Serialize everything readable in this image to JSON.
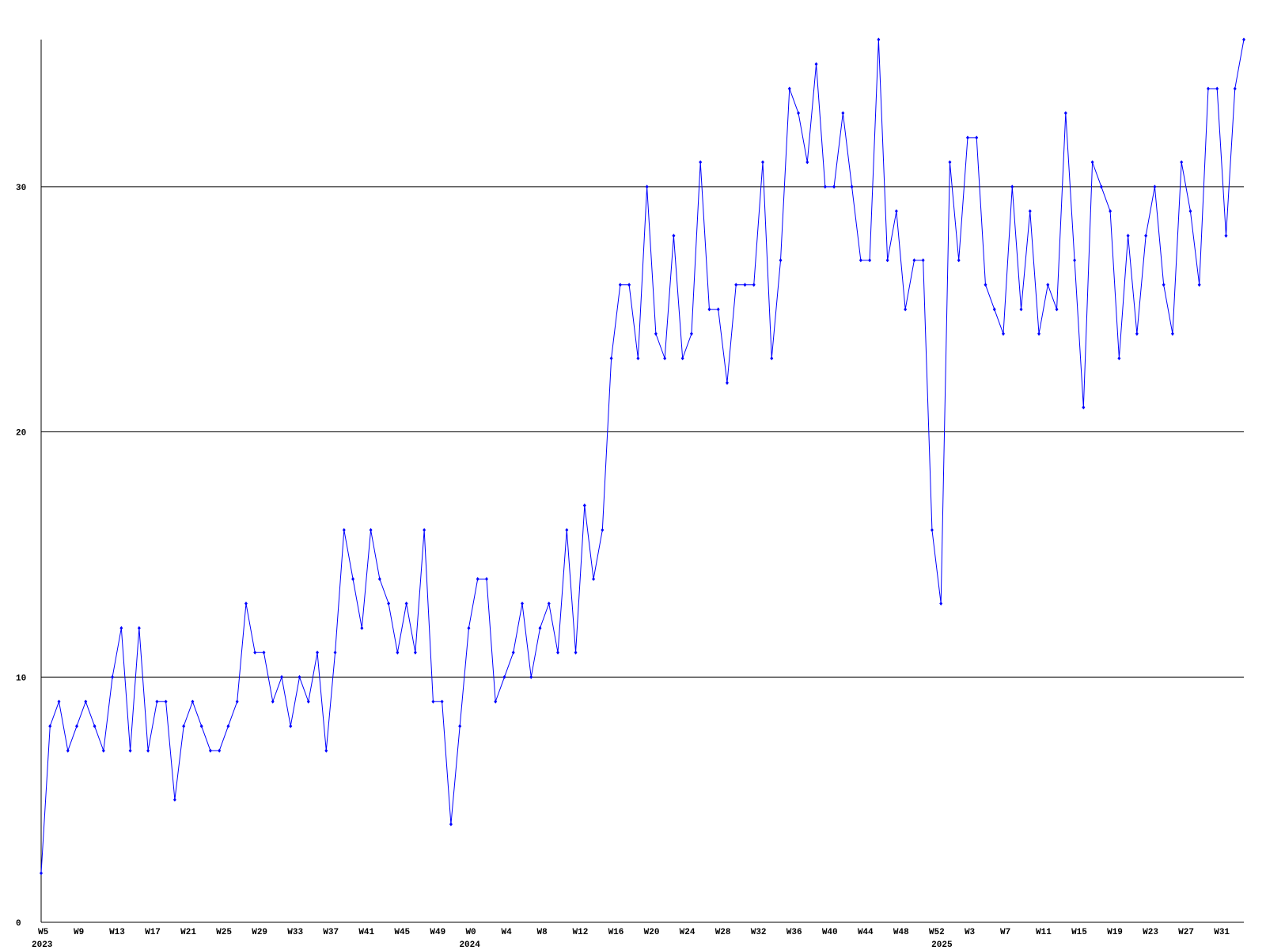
{
  "chart_data": {
    "type": "line",
    "categories": [
      "W5",
      null,
      null,
      null,
      "W9",
      null,
      null,
      null,
      "W13",
      null,
      null,
      null,
      "W17",
      null,
      null,
      null,
      "W21",
      null,
      null,
      null,
      "W25",
      null,
      null,
      null,
      "W29",
      null,
      null,
      null,
      "W33",
      null,
      null,
      null,
      "W37",
      null,
      null,
      null,
      "W41",
      null,
      null,
      null,
      "W45",
      null,
      null,
      null,
      "W49",
      null,
      null,
      null,
      "W0",
      null,
      null,
      null,
      "W4",
      null,
      null,
      null,
      "W8",
      null,
      null,
      null,
      "W12",
      null,
      null,
      null,
      "W16",
      null,
      null,
      null,
      "W20",
      null,
      null,
      null,
      "W24",
      null,
      null,
      null,
      "W28",
      null,
      null,
      null,
      "W32",
      null,
      null,
      null,
      "W36",
      null,
      null,
      null,
      "W40",
      null,
      null,
      null,
      "W44",
      null,
      null,
      null,
      "W48",
      null,
      null,
      null,
      "W52",
      null,
      null,
      null,
      "W3",
      null,
      null,
      null,
      "W7",
      null,
      null,
      null,
      "W11",
      null,
      null,
      null,
      "W15",
      null,
      null,
      null,
      "W19",
      null,
      null,
      null,
      "W23",
      null,
      null,
      null,
      "W27",
      null,
      null,
      null,
      "W31",
      null,
      null,
      null
    ],
    "x_group_labels": [
      {
        "at": 0,
        "label": "2023"
      },
      {
        "at": 48,
        "label": "2024"
      },
      {
        "at": 101,
        "label": "2025"
      }
    ],
    "series": [
      {
        "color": "#0000ff",
        "values": [
          2,
          8,
          9,
          7,
          8,
          9,
          8,
          7,
          10,
          12,
          7,
          12,
          7,
          9,
          9,
          5,
          8,
          9,
          8,
          7,
          7,
          8,
          9,
          13,
          11,
          11,
          9,
          10,
          8,
          10,
          9,
          11,
          7,
          11,
          16,
          14,
          12,
          16,
          14,
          13,
          11,
          13,
          11,
          16,
          9,
          9,
          4,
          8,
          12,
          14,
          14,
          9,
          10,
          11,
          13,
          10,
          12,
          13,
          11,
          16,
          11,
          17,
          14,
          16,
          23,
          26,
          26,
          23,
          30,
          24,
          23,
          28,
          23,
          24,
          31,
          25,
          25,
          22,
          26,
          26,
          26,
          31,
          23,
          27,
          34,
          33,
          31,
          35,
          30,
          30,
          33,
          30,
          27,
          27,
          36,
          27,
          29,
          25,
          27,
          27,
          16,
          13,
          31,
          27,
          32,
          32,
          26,
          25,
          24,
          30,
          25,
          29,
          24,
          26,
          25,
          33,
          27,
          21,
          31,
          30,
          29,
          23,
          28,
          24,
          28,
          30,
          26,
          24,
          31,
          29,
          26,
          34,
          34,
          28,
          34,
          36
        ]
      }
    ],
    "ylim": [
      0,
      36
    ],
    "yticks": [
      0,
      10,
      20,
      30
    ],
    "grid": true
  }
}
